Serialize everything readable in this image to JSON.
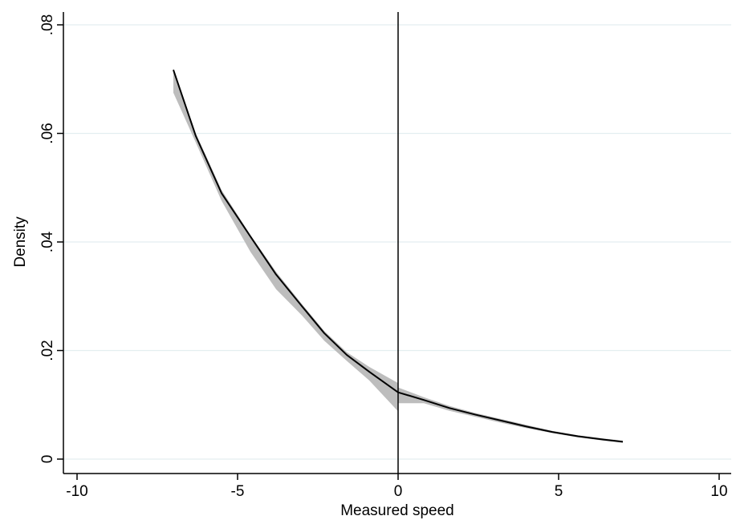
{
  "chart_data": {
    "type": "line",
    "title": "",
    "xlabel": "Measured speed",
    "ylabel": "Density",
    "xlim": [
      -10,
      10
    ],
    "ylim": [
      0,
      0.08
    ],
    "x_ticks": [
      -10,
      -5,
      0,
      5,
      10
    ],
    "x_tick_labels": [
      "-10",
      "-5",
      "0",
      "5",
      "10"
    ],
    "y_ticks": [
      0,
      0.02,
      0.04,
      0.06,
      0.08
    ],
    "y_tick_labels": [
      "0",
      ".02",
      ".04",
      ".06",
      ".08"
    ],
    "grid": "horizontal",
    "cutoff_line_x": 0,
    "colors": {
      "line": "#000000",
      "band": "#bdbdbd",
      "grid": "#e3eef0",
      "axis": "#000000"
    },
    "series": [
      {
        "x": [
          -7,
          -6.3,
          -5.5,
          -4.6,
          -3.8,
          -3.0,
          -2.3,
          -1.6,
          -0.9,
          0
        ],
        "y": [
          0.0717,
          0.0595,
          0.049,
          0.041,
          0.034,
          0.0282,
          0.0232,
          0.0192,
          0.0161,
          0.0123
        ],
        "ci_lower": [
          0.0675,
          0.0583,
          0.0476,
          0.0382,
          0.0313,
          0.0265,
          0.0218,
          0.0181,
          0.0145,
          0.0088
        ],
        "ci_upper": [
          0.072,
          0.06,
          0.0496,
          0.0413,
          0.0345,
          0.0286,
          0.0236,
          0.0197,
          0.017,
          0.014
        ]
      },
      {
        "x": [
          0,
          0.8,
          1.6,
          2.4,
          3.2,
          4.0,
          4.8,
          5.6,
          6.4,
          7
        ],
        "y": [
          0.0123,
          0.0109,
          0.0094,
          0.0082,
          0.0071,
          0.006,
          0.005,
          0.0042,
          0.0036,
          0.0032
        ],
        "ci_lower": [
          0.0103,
          0.0103,
          0.0089,
          0.0078,
          0.0067,
          0.0057,
          0.0048,
          0.004,
          0.0034,
          0.003
        ],
        "ci_upper": [
          0.0132,
          0.0114,
          0.0098,
          0.0085,
          0.0074,
          0.0063,
          0.0052,
          0.0044,
          0.0038,
          0.0034
        ]
      }
    ]
  }
}
